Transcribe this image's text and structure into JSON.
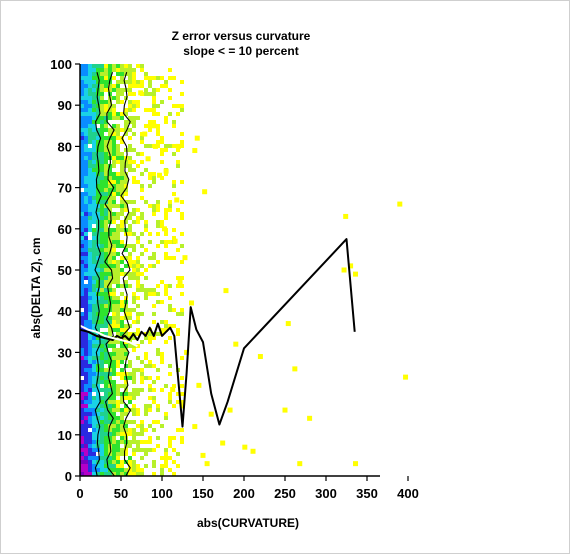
{
  "chart_data": {
    "type": "heatmap",
    "title": "Z error versus curvature",
    "subtitle": "slope < = 10 percent",
    "xlabel": "abs(CURVATURE)",
    "ylabel": "abs(DELTA Z), cm",
    "xlim": [
      0,
      400
    ],
    "ylim": [
      0,
      100
    ],
    "x_ticks": [
      0,
      50,
      100,
      150,
      200,
      250,
      300,
      350,
      400
    ],
    "y_ticks": [
      0,
      10,
      20,
      30,
      40,
      50,
      60,
      70,
      80,
      90,
      100
    ],
    "grid": false,
    "legend": "none",
    "density_colors_high_to_low": [
      "#7a00c0",
      "#b400c8",
      "#2a2ae0",
      "#0a8cff",
      "#19d2e6",
      "#20d28c",
      "#2ee32e",
      "#b7f02a",
      "#ffff00"
    ],
    "contour_color": "#000000",
    "series": [
      {
        "name": "",
        "type": "line",
        "color": "#000000",
        "x": [
          0,
          10,
          20,
          30,
          40,
          45,
          50,
          55,
          60,
          65,
          70,
          75,
          80,
          85,
          90,
          95,
          100,
          105,
          110,
          115,
          125,
          130,
          135,
          142,
          150,
          160,
          170,
          180,
          200,
          325,
          335
        ],
        "y": [
          35.5,
          35,
          34,
          33.5,
          33,
          34,
          33.5,
          34,
          33,
          34.5,
          33,
          35,
          34,
          36,
          34,
          37,
          34,
          35,
          36,
          34,
          12,
          25,
          41,
          35.5,
          32.5,
          20,
          12.5,
          18,
          31,
          57.5,
          35
        ]
      },
      {
        "name": "",
        "type": "line",
        "color": "#ffffff",
        "x": [
          0,
          10,
          20,
          30,
          40,
          50,
          60,
          70
        ],
        "y": [
          36.5,
          35.5,
          35,
          34,
          33.5,
          33,
          32.5,
          31.5
        ]
      }
    ],
    "outlier_points": [
      [
        74,
        93
      ],
      [
        79,
        83
      ],
      [
        83,
        77
      ],
      [
        90,
        85
      ],
      [
        92,
        80
      ],
      [
        97,
        73
      ],
      [
        105,
        74
      ],
      [
        120,
        80
      ],
      [
        118,
        67
      ],
      [
        143,
        82
      ],
      [
        152,
        69
      ],
      [
        140,
        79
      ],
      [
        103,
        60
      ],
      [
        116,
        57
      ],
      [
        128,
        53
      ],
      [
        122,
        47
      ],
      [
        136,
        42
      ],
      [
        178,
        45
      ],
      [
        190,
        32
      ],
      [
        220,
        29
      ],
      [
        254,
        37
      ],
      [
        262,
        26
      ],
      [
        280,
        14
      ],
      [
        250,
        16
      ],
      [
        201,
        7
      ],
      [
        211,
        6
      ],
      [
        268,
        3
      ],
      [
        324,
        63
      ],
      [
        322,
        50
      ],
      [
        330,
        51
      ],
      [
        336,
        49
      ],
      [
        390,
        66
      ],
      [
        397,
        24
      ],
      [
        336,
        3
      ],
      [
        160,
        15
      ],
      [
        150,
        5
      ],
      [
        174,
        8
      ],
      [
        125,
        17
      ],
      [
        155,
        3
      ],
      [
        113,
        21
      ],
      [
        140,
        12
      ],
      [
        183,
        16
      ],
      [
        145,
        22
      ],
      [
        130,
        30
      ]
    ]
  }
}
